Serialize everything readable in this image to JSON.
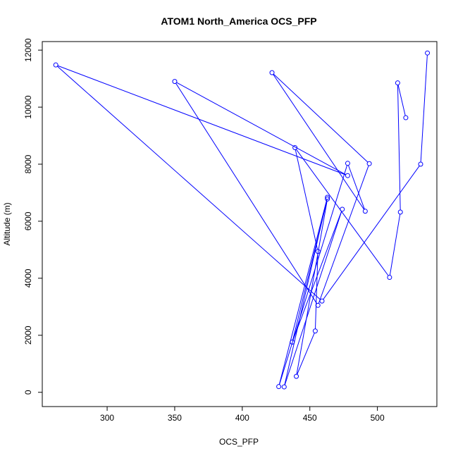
{
  "chart_data": {
    "type": "line",
    "title": "ATOM1 North_America OCS_PFP",
    "xlabel": "OCS_PFP",
    "ylabel": "Altitude (m)",
    "xlim": [
      252,
      544
    ],
    "ylim": [
      -500,
      12300
    ],
    "xticks": [
      300,
      350,
      400,
      450,
      500
    ],
    "yticks": [
      0,
      2000,
      4000,
      6000,
      8000,
      10000,
      12000
    ],
    "grid": false,
    "color": "#0000ff",
    "series": [
      {
        "points": [
          {
            "x": 537,
            "y": 11900
          },
          {
            "x": 532,
            "y": 8000
          },
          {
            "x": 459,
            "y": 3200
          },
          {
            "x": 262,
            "y": 11480
          },
          {
            "x": 478,
            "y": 7600
          },
          {
            "x": 350,
            "y": 10900
          },
          {
            "x": 456,
            "y": 3050
          },
          {
            "x": 494,
            "y": 8020
          },
          {
            "x": 422,
            "y": 11210
          },
          {
            "x": 491,
            "y": 6350
          },
          {
            "x": 478,
            "y": 8030
          },
          {
            "x": 427,
            "y": 200
          },
          {
            "x": 463,
            "y": 6840
          },
          {
            "x": 431,
            "y": 190
          },
          {
            "x": 474,
            "y": 6420
          },
          {
            "x": 437,
            "y": 1760
          },
          {
            "x": 463,
            "y": 6780
          },
          {
            "x": 440,
            "y": 560
          },
          {
            "x": 454,
            "y": 2150
          },
          {
            "x": 456,
            "y": 4940
          },
          {
            "x": 439,
            "y": 8580
          },
          {
            "x": 509,
            "y": 4030
          },
          {
            "x": 517,
            "y": 6320
          },
          {
            "x": 515,
            "y": 10850
          },
          {
            "x": 521,
            "y": 9630
          }
        ]
      }
    ]
  }
}
